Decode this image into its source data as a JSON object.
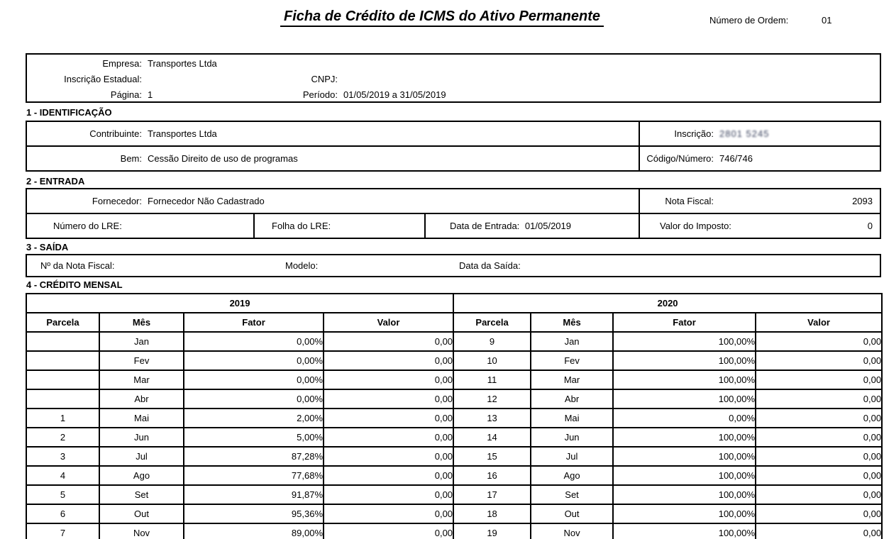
{
  "header": {
    "title": "Ficha de Crédito de ICMS do Ativo Permanente",
    "order_label": "Número de Ordem:",
    "order_value": "01"
  },
  "company_box": {
    "empresa_label": "Empresa:",
    "empresa_value": "Transportes Ltda",
    "inscricao_estadual_label": "Inscrição Estadual:",
    "inscricao_estadual_value": "",
    "cnpj_label": "CNPJ:",
    "cnpj_value": "",
    "pagina_label": "Página:",
    "pagina_value": "1",
    "periodo_label": "Período:",
    "periodo_value": "01/05/2019 a 31/05/2019"
  },
  "section1": {
    "heading": "1 - IDENTIFICAÇÃO",
    "contribuinte_label": "Contribuinte:",
    "contribuinte_value": "Transportes Ltda",
    "inscricao_label": "Inscrição:",
    "inscricao_value": "2801 5245",
    "bem_label": "Bem:",
    "bem_value": "Cessão Direito de uso de programas",
    "codigo_numero_label": "Código/Número:",
    "codigo_numero_value": "746/746"
  },
  "section2": {
    "heading": "2 - ENTRADA",
    "fornecedor_label": "Fornecedor:",
    "fornecedor_value": "Fornecedor Não Cadastrado",
    "nota_fiscal_label": "Nota Fiscal:",
    "nota_fiscal_value": "2093",
    "numero_lre_label": "Número do LRE:",
    "numero_lre_value": "",
    "folha_lre_label": "Folha do LRE:",
    "folha_lre_value": "",
    "data_entrada_label": "Data de Entrada:",
    "data_entrada_value": "01/05/2019",
    "valor_imposto_label": "Valor do Imposto:",
    "valor_imposto_value": "0"
  },
  "section3": {
    "heading": "3 - SAÍDA",
    "nota_fiscal_label": "Nº da Nota Fiscal:",
    "nota_fiscal_value": "",
    "modelo_label": "Modelo:",
    "modelo_value": "",
    "data_saida_label": "Data da Saída:",
    "data_saida_value": ""
  },
  "section4": {
    "heading": "4 - CRÉDITO MENSAL",
    "year_left": "2019",
    "year_right": "2020",
    "columns": [
      "Parcela",
      "Mês",
      "Fator",
      "Valor"
    ],
    "rows": [
      [
        "",
        "Jan",
        "0,00%",
        "0,00",
        "9",
        "Jan",
        "100,00%",
        "0,00"
      ],
      [
        "",
        "Fev",
        "0,00%",
        "0,00",
        "10",
        "Fev",
        "100,00%",
        "0,00"
      ],
      [
        "",
        "Mar",
        "0,00%",
        "0,00",
        "11",
        "Mar",
        "100,00%",
        "0,00"
      ],
      [
        "",
        "Abr",
        "0,00%",
        "0,00",
        "12",
        "Abr",
        "100,00%",
        "0,00"
      ],
      [
        "1",
        "Mai",
        "2,00%",
        "0,00",
        "13",
        "Mai",
        "0,00%",
        "0,00"
      ],
      [
        "2",
        "Jun",
        "5,00%",
        "0,00",
        "14",
        "Jun",
        "100,00%",
        "0,00"
      ],
      [
        "3",
        "Jul",
        "87,28%",
        "0,00",
        "15",
        "Jul",
        "100,00%",
        "0,00"
      ],
      [
        "4",
        "Ago",
        "77,68%",
        "0,00",
        "16",
        "Ago",
        "100,00%",
        "0,00"
      ],
      [
        "5",
        "Set",
        "91,87%",
        "0,00",
        "17",
        "Set",
        "100,00%",
        "0,00"
      ],
      [
        "6",
        "Out",
        "95,36%",
        "0,00",
        "18",
        "Out",
        "100,00%",
        "0,00"
      ],
      [
        "7",
        "Nov",
        "89,00%",
        "0,00",
        "19",
        "Nov",
        "100,00%",
        "0,00"
      ]
    ]
  }
}
